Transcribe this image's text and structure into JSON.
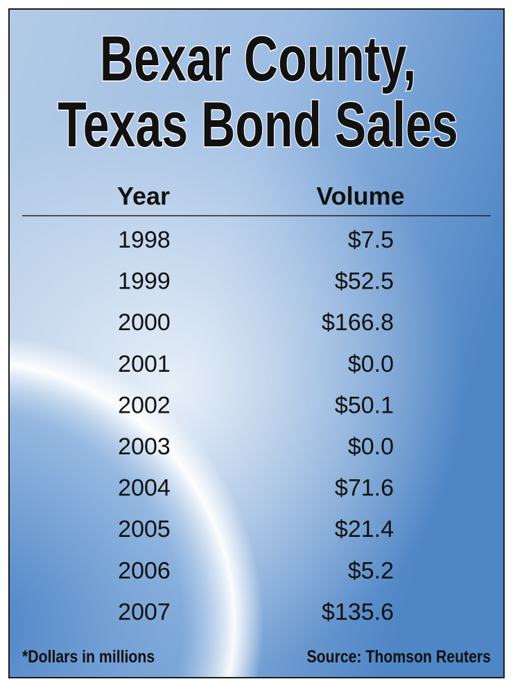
{
  "header": {
    "title_lines": [
      "Bexar County,",
      "Texas Bond Sales"
    ]
  },
  "table": {
    "columns": [
      "Year",
      "Volume"
    ],
    "rows": [
      [
        "1998",
        "$7.5"
      ],
      [
        "1999",
        "$52.5"
      ],
      [
        "2000",
        "$166.8"
      ],
      [
        "2001",
        "$0.0"
      ],
      [
        "2002",
        "$50.1"
      ],
      [
        "2003",
        "$0.0"
      ],
      [
        "2004",
        "$71.6"
      ],
      [
        "2005",
        "$21.4"
      ],
      [
        "2006",
        "$5.2"
      ],
      [
        "2007",
        "$135.6"
      ]
    ]
  },
  "footer": {
    "note": "*Dollars in millions",
    "source": "Source: Thomson Reuters"
  }
}
